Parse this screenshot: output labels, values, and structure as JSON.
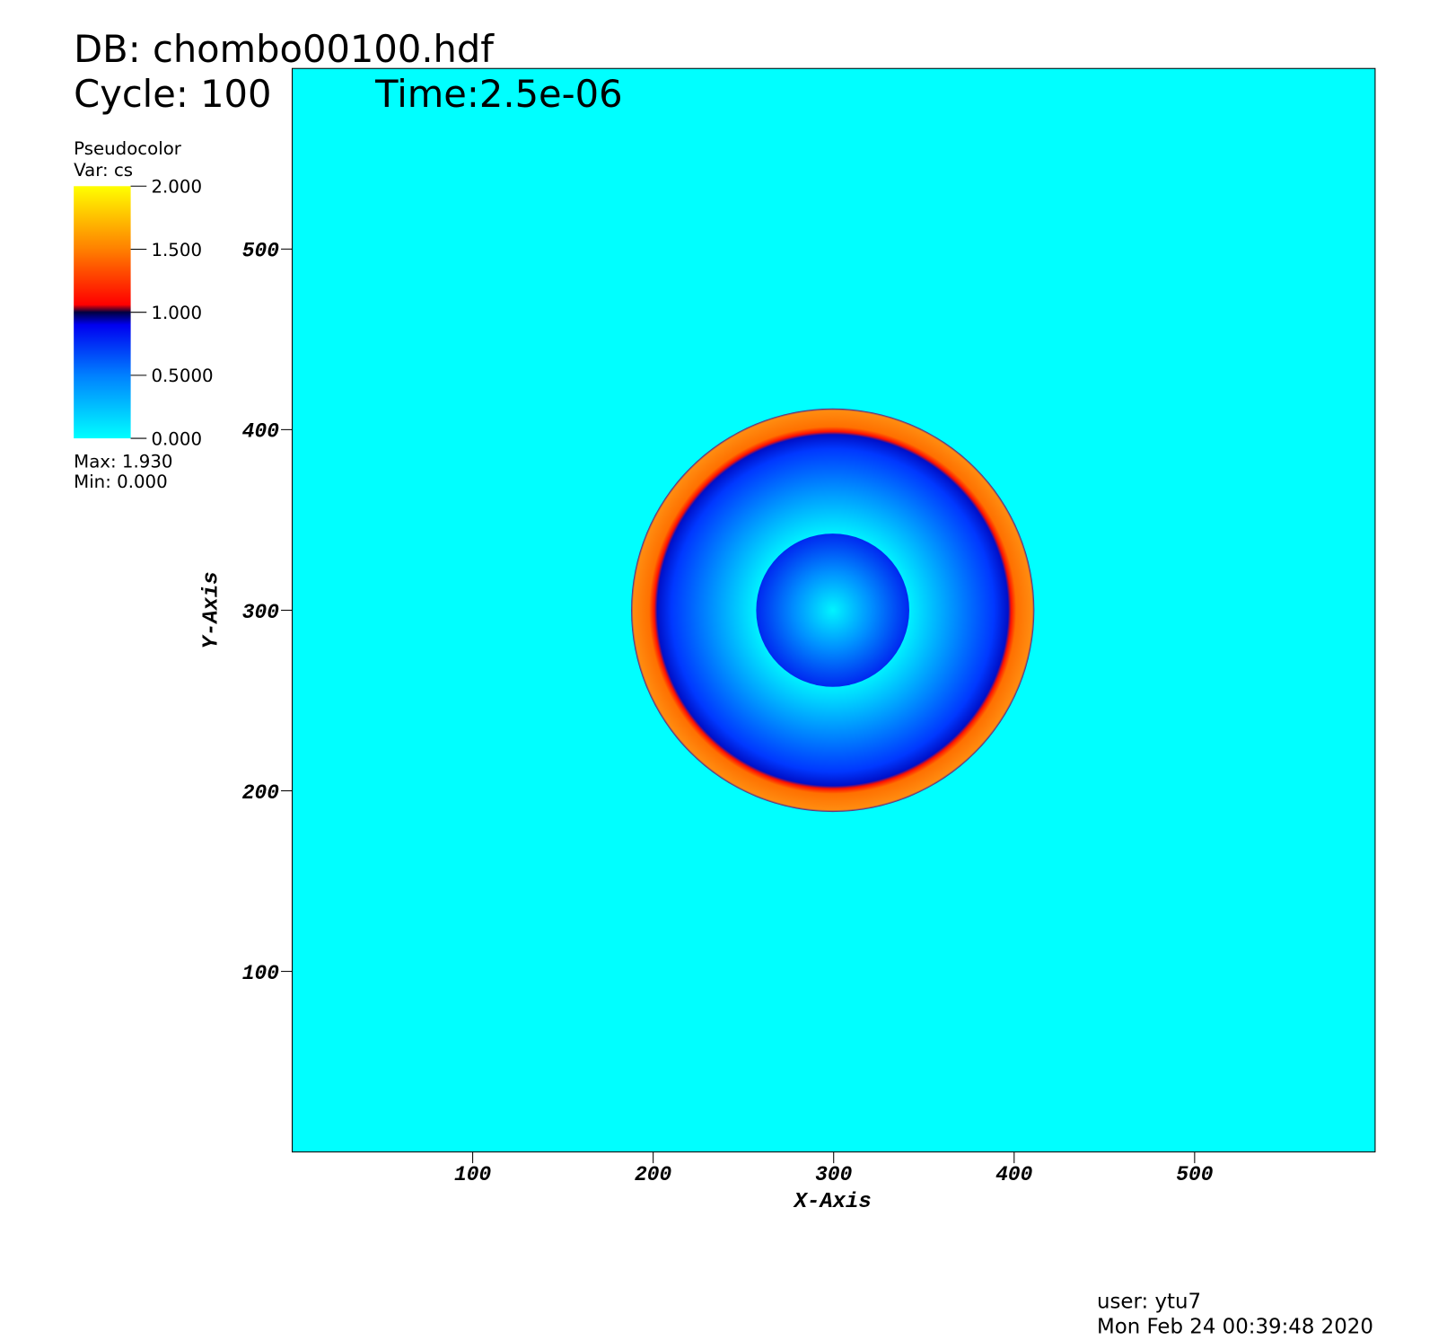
{
  "chart_data": {
    "type": "pseudocolor",
    "title": "DB: chombo00100.hdf",
    "cycle": "Cycle: 100",
    "time": "Time:2.5e-06",
    "legend_title": "Pseudocolor",
    "variable": "Var: cs",
    "max_label": "Max:  1.930",
    "min_label": "Min:  0.000",
    "x_label": "X-Axis",
    "y_label": "Y-Axis",
    "xlim": [
      0,
      600
    ],
    "ylim": [
      0,
      600
    ],
    "xticks": [
      100,
      200,
      300,
      400,
      500
    ],
    "yticks": [
      100,
      200,
      300,
      400,
      500
    ],
    "colorbar_lim": [
      0,
      2
    ],
    "colorbar_ticks": [
      {
        "value": 0,
        "label": "0.000"
      },
      {
        "value": 0.5,
        "label": "0.5000"
      },
      {
        "value": 1,
        "label": "1.000"
      },
      {
        "value": 1.5,
        "label": "1.500"
      },
      {
        "value": 2,
        "label": "2.000"
      }
    ],
    "user": "user: ytu7",
    "date": "Mon Feb 24 00:39:48 2020"
  }
}
